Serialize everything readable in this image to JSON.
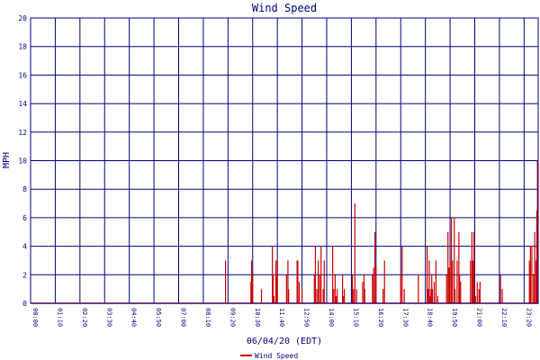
{
  "chart_data": {
    "type": "bar",
    "title": "Wind Speed",
    "xlabel": "06/04/20 (EDT)",
    "ylabel": "MPH",
    "ylim": [
      0,
      20
    ],
    "yticks": [
      0,
      2,
      4,
      6,
      8,
      10,
      12,
      14,
      16,
      18,
      20
    ],
    "xlim": [
      "00:00",
      "24:00"
    ],
    "xticks": [
      "00:00",
      "01:10",
      "02:20",
      "03:30",
      "04:40",
      "05:50",
      "07:00",
      "08:10",
      "09:20",
      "10:30",
      "11:40",
      "12:50",
      "14:00",
      "15:10",
      "16:20",
      "17:30",
      "18:40",
      "19:50",
      "21:00",
      "22:10",
      "23:20",
      "24:00"
    ],
    "grid": true,
    "legend_position": "bottom-left",
    "series": [
      {
        "name": "Wind Speed",
        "color": "#cc0000",
        "time": [
          "09:13",
          "10:25",
          "10:27",
          "10:30",
          "10:55",
          "11:26",
          "11:28",
          "11:31",
          "11:36",
          "11:38",
          "11:40",
          "12:06",
          "12:10",
          "12:12",
          "12:36",
          "12:38",
          "12:42",
          "12:50",
          "13:25",
          "13:28",
          "13:32",
          "13:36",
          "13:40",
          "13:44",
          "13:50",
          "13:53",
          "14:17",
          "14:20",
          "14:24",
          "14:27",
          "14:30",
          "14:45",
          "14:48",
          "14:50",
          "15:13",
          "15:16",
          "15:20",
          "15:25",
          "15:42",
          "15:46",
          "15:48",
          "16:10",
          "16:13",
          "16:17",
          "16:20",
          "16:40",
          "16:44",
          "17:30",
          "17:34",
          "17:40",
          "18:20",
          "18:45",
          "18:47",
          "18:49",
          "18:51",
          "18:54",
          "18:56",
          "18:58",
          "19:00",
          "19:05",
          "19:10",
          "19:15",
          "19:40",
          "19:44",
          "19:47",
          "19:50",
          "19:54",
          "19:57",
          "20:02",
          "20:04",
          "20:10",
          "20:15",
          "20:17",
          "20:20",
          "20:48",
          "20:52",
          "20:55",
          "20:58",
          "21:02",
          "21:07",
          "21:12",
          "21:15",
          "22:13",
          "22:18",
          "23:35",
          "23:38",
          "23:42",
          "23:47",
          "23:50",
          "23:54",
          "23:56",
          "23:58"
        ],
        "values": [
          3,
          1.5,
          3,
          2,
          1,
          4,
          2,
          0.5,
          3,
          2,
          3,
          2,
          3,
          1,
          3,
          3,
          1.5,
          1,
          2,
          4,
          1,
          3,
          2,
          4,
          1,
          3,
          4,
          1,
          2,
          0.5,
          1,
          2,
          0.5,
          1,
          2,
          1,
          7,
          1,
          1.5,
          2,
          1,
          2,
          2.5,
          5,
          2.5,
          1,
          3,
          2,
          4,
          1,
          2,
          4,
          1,
          1,
          3,
          0.5,
          1,
          2,
          1,
          1.5,
          3,
          0.5,
          2,
          5,
          2.5,
          3,
          6,
          3,
          6,
          1,
          3,
          5,
          2,
          1.5,
          3,
          5,
          3,
          5,
          0.5,
          1.5,
          1,
          1.5,
          2,
          1,
          3,
          4,
          4,
          2,
          5,
          3,
          6.5,
          10
        ]
      }
    ]
  }
}
